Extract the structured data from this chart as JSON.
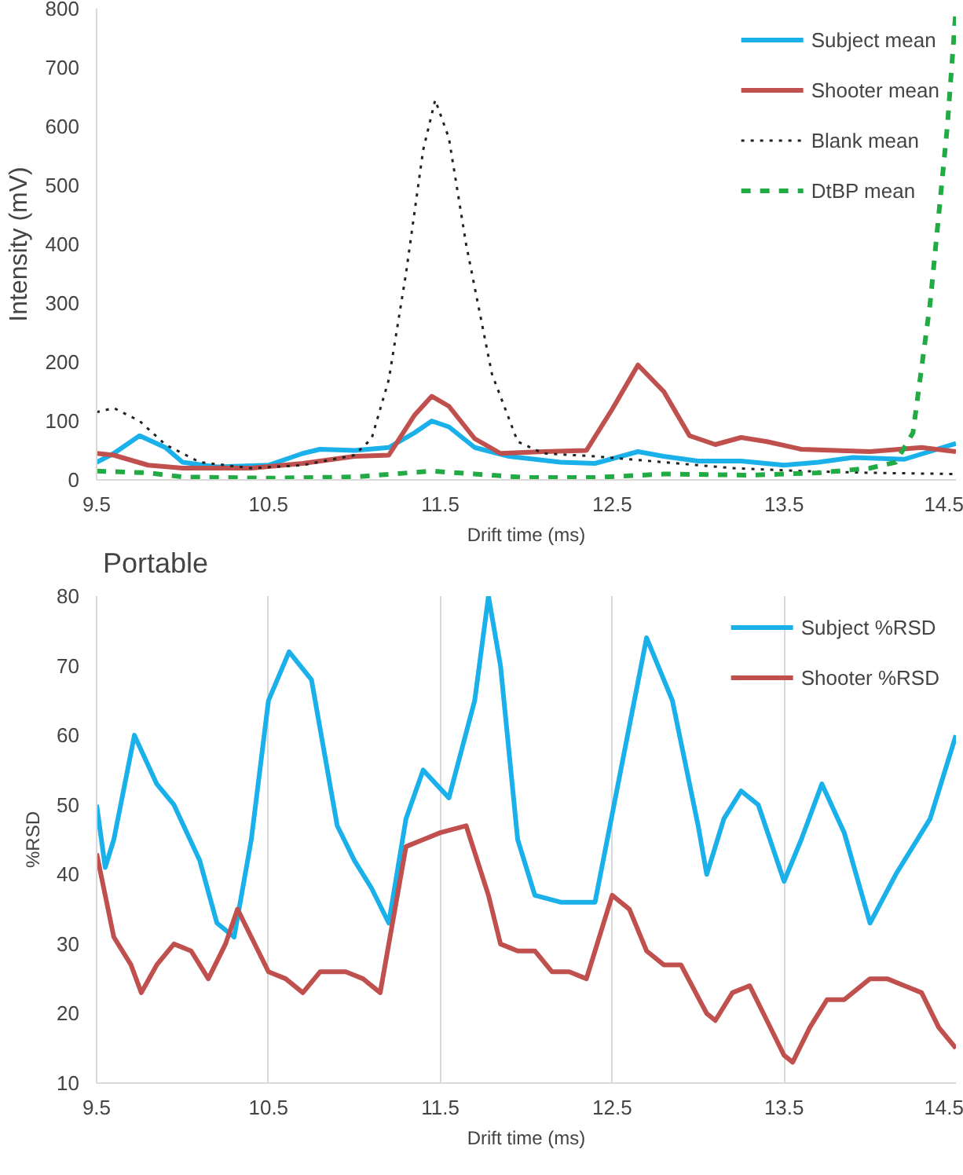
{
  "chart_data": [
    {
      "type": "line",
      "xlabel": "Drift time (ms)",
      "ylabel": "Intensity (mV)",
      "xlim": [
        9.5,
        14.5
      ],
      "xticks": [
        9.5,
        10.5,
        11.5,
        12.5,
        13.5,
        14.5
      ],
      "ylim": [
        0,
        800
      ],
      "yticks": [
        0,
        100,
        200,
        300,
        400,
        500,
        600,
        700,
        800
      ],
      "grid": false,
      "legend": "top right",
      "annotations": [
        "Portable"
      ],
      "series": [
        {
          "name": "Subject mean",
          "color": "#1ab0ea",
          "line_style": "solid",
          "x": [
            9.5,
            9.6,
            9.75,
            9.9,
            10.0,
            10.2,
            10.5,
            10.7,
            10.8,
            11.0,
            11.2,
            11.35,
            11.45,
            11.55,
            11.7,
            11.9,
            12.2,
            12.4,
            12.65,
            12.8,
            13.0,
            13.25,
            13.5,
            13.7,
            13.9,
            14.2,
            14.5
          ],
          "values": [
            30,
            45,
            75,
            55,
            30,
            22,
            25,
            45,
            52,
            50,
            55,
            80,
            100,
            90,
            55,
            40,
            30,
            28,
            48,
            40,
            32,
            32,
            25,
            30,
            38,
            35,
            62
          ]
        },
        {
          "name": "Shooter mean",
          "color": "#c0504d",
          "line_style": "solid",
          "x": [
            9.5,
            9.6,
            9.8,
            10.0,
            10.4,
            10.7,
            11.0,
            11.2,
            11.35,
            11.45,
            11.55,
            11.7,
            11.85,
            12.1,
            12.35,
            12.5,
            12.65,
            12.8,
            12.95,
            13.1,
            13.25,
            13.4,
            13.6,
            14.0,
            14.3,
            14.5
          ],
          "values": [
            45,
            42,
            25,
            20,
            20,
            28,
            40,
            42,
            110,
            142,
            125,
            70,
            45,
            48,
            50,
            120,
            195,
            150,
            75,
            60,
            72,
            65,
            52,
            48,
            55,
            48
          ]
        },
        {
          "name": "Blank mean",
          "color": "#222222",
          "line_style": "dotted",
          "x": [
            9.5,
            9.6,
            9.75,
            9.9,
            10.1,
            10.4,
            10.7,
            11.0,
            11.1,
            11.2,
            11.3,
            11.4,
            11.47,
            11.55,
            11.65,
            11.8,
            11.95,
            12.1,
            12.4,
            12.8,
            13.2,
            13.6,
            14.0,
            14.5
          ],
          "values": [
            115,
            122,
            100,
            60,
            30,
            20,
            25,
            42,
            70,
            170,
            350,
            560,
            645,
            580,
            400,
            180,
            65,
            45,
            40,
            30,
            20,
            15,
            12,
            10
          ]
        },
        {
          "name": "DtBP mean",
          "color": "#22aa44",
          "line_style": "dashed",
          "x": [
            9.5,
            9.8,
            10.0,
            10.5,
            11.0,
            11.45,
            11.7,
            12.0,
            12.4,
            12.8,
            13.3,
            13.7,
            14.0,
            14.15,
            14.25,
            14.35,
            14.45,
            14.5
          ],
          "values": [
            15,
            12,
            5,
            3,
            5,
            15,
            10,
            4,
            4,
            10,
            8,
            12,
            20,
            30,
            80,
            300,
            600,
            800
          ]
        }
      ]
    },
    {
      "type": "line",
      "xlabel": "Drift time (ms)",
      "ylabel": "%RSD",
      "xlim": [
        9.5,
        14.5
      ],
      "xticks": [
        9.5,
        10.5,
        11.5,
        12.5,
        13.5,
        14.5
      ],
      "ylim": [
        10,
        80
      ],
      "yticks": [
        10,
        20,
        30,
        40,
        50,
        60,
        70,
        80
      ],
      "grid": "x",
      "legend": "top right",
      "series": [
        {
          "name": "Subject %RSD",
          "color": "#1ab0ea",
          "line_style": "solid",
          "x": [
            9.5,
            9.55,
            9.6,
            9.72,
            9.85,
            9.95,
            10.1,
            10.2,
            10.3,
            10.4,
            10.5,
            10.62,
            10.75,
            10.9,
            11.0,
            11.1,
            11.2,
            11.3,
            11.4,
            11.55,
            11.7,
            11.78,
            11.85,
            11.95,
            12.05,
            12.2,
            12.4,
            12.55,
            12.7,
            12.85,
            13.0,
            13.05,
            13.15,
            13.25,
            13.35,
            13.5,
            13.6,
            13.72,
            13.85,
            14.0,
            14.15,
            14.35,
            14.5
          ],
          "values": [
            50,
            41,
            45,
            60,
            53,
            50,
            42,
            33,
            31,
            45,
            65,
            72,
            68,
            47,
            42,
            38,
            33,
            48,
            55,
            51,
            65,
            80,
            70,
            45,
            37,
            36,
            36,
            55,
            74,
            65,
            47,
            40,
            48,
            52,
            50,
            39,
            45,
            53,
            46,
            33,
            40,
            48,
            60
          ]
        },
        {
          "name": "Shooter %RSD",
          "color": "#c0504d",
          "line_style": "solid",
          "x": [
            9.5,
            9.6,
            9.7,
            9.76,
            9.85,
            9.95,
            10.05,
            10.15,
            10.25,
            10.32,
            10.4,
            10.5,
            10.6,
            10.7,
            10.8,
            10.95,
            11.05,
            11.15,
            11.3,
            11.4,
            11.5,
            11.65,
            11.78,
            11.85,
            11.95,
            12.05,
            12.15,
            12.25,
            12.35,
            12.5,
            12.6,
            12.7,
            12.8,
            12.9,
            13.05,
            13.1,
            13.2,
            13.3,
            13.4,
            13.5,
            13.55,
            13.65,
            13.75,
            13.85,
            14.0,
            14.1,
            14.2,
            14.3,
            14.4,
            14.5
          ],
          "values": [
            43,
            31,
            27,
            23,
            27,
            30,
            29,
            25,
            30,
            35,
            31,
            26,
            25,
            23,
            26,
            26,
            25,
            23,
            44,
            45,
            46,
            47,
            37,
            30,
            29,
            29,
            26,
            26,
            25,
            37,
            35,
            29,
            27,
            27,
            20,
            19,
            23,
            24,
            19,
            14,
            13,
            18,
            22,
            22,
            25,
            25,
            24,
            23,
            18,
            15
          ]
        }
      ]
    }
  ]
}
